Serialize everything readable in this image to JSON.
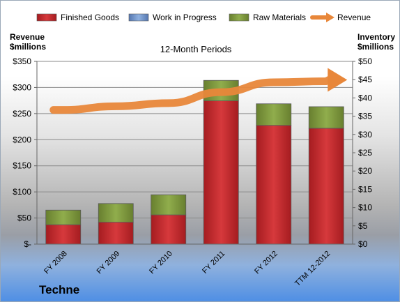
{
  "company": "Techne",
  "chart_data": {
    "type": "bar",
    "title": "12-Month Periods",
    "categories": [
      "FY 2008",
      "FY 2009",
      "FY 2010",
      "FY 2011",
      "FY 2012",
      "TTM 12-2012"
    ],
    "ylabel_left": [
      "Revenue",
      "$millions"
    ],
    "ylabel_right": [
      "Inventory",
      "$millions"
    ],
    "ylim_left": [
      0,
      350
    ],
    "ylim_right": [
      0,
      50
    ],
    "left_ticks": [
      "$-",
      "$50",
      "$100",
      "$150",
      "$200",
      "$250",
      "$300",
      "$350"
    ],
    "right_ticks": [
      "$0",
      "$5",
      "$10",
      "$15",
      "$20",
      "$25",
      "$30",
      "$35",
      "$40",
      "$45",
      "$50"
    ],
    "legend_position": "top",
    "series": [
      {
        "name": "Finished Goods",
        "type": "stacked-bar",
        "axis": "right",
        "color": "#c0262b",
        "values": [
          5.3,
          6.0,
          8.0,
          39.2,
          32.5,
          31.7
        ]
      },
      {
        "name": "Work in Progress",
        "type": "stacked-bar",
        "axis": "right",
        "color": "#6f94cc",
        "values": [
          0,
          0,
          0,
          0,
          0,
          0
        ]
      },
      {
        "name": "Raw Materials",
        "type": "stacked-bar",
        "axis": "right",
        "color": "#7d9a3c",
        "values": [
          4.0,
          5.1,
          5.5,
          5.6,
          5.9,
          5.9
        ]
      },
      {
        "name": "Revenue",
        "type": "line",
        "axis": "left",
        "color": "#e8873a",
        "values": [
          257,
          264,
          270,
          291,
          310,
          312
        ]
      }
    ]
  }
}
